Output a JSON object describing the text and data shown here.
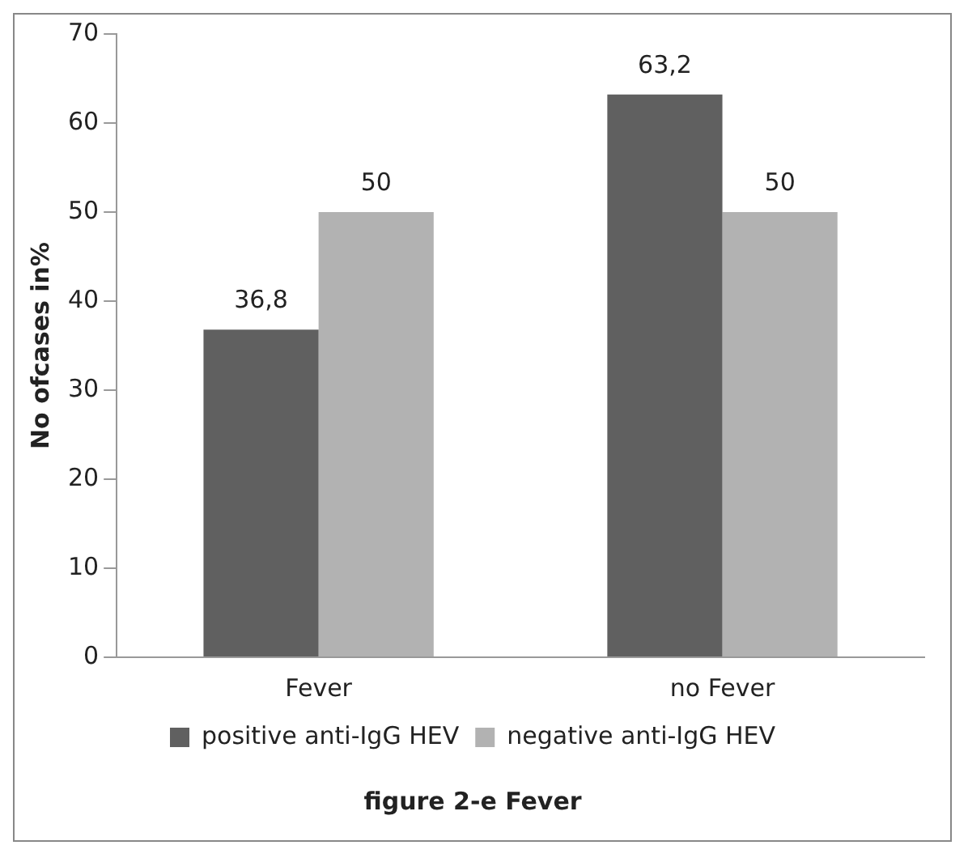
{
  "chart_data": {
    "type": "bar",
    "title": "figure 2-e Fever",
    "ylabel": "No ofcases in%",
    "categories": [
      "Fever",
      "no Fever"
    ],
    "series": [
      {
        "name": "positive anti-IgG HEV",
        "color": "#606060",
        "values": [
          36.8,
          63.2
        ],
        "value_labels": [
          "36,8",
          "63,2"
        ]
      },
      {
        "name": "negative anti-IgG HEV",
        "color": "#b2b2b2",
        "values": [
          50,
          50
        ],
        "value_labels": [
          "50",
          "50"
        ]
      }
    ],
    "ylim": [
      0,
      70
    ],
    "yticks": [
      0,
      10,
      20,
      30,
      40,
      50,
      60,
      70
    ],
    "grid": false,
    "legend": "bottom"
  }
}
